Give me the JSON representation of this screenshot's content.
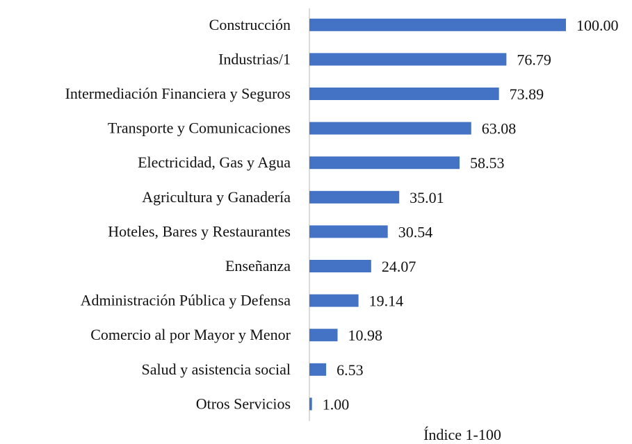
{
  "chart_data": {
    "type": "bar",
    "orientation": "horizontal",
    "x_label": "Índice 1-100",
    "categories": [
      "Construcción",
      "Industrias/1",
      "Intermediación Financiera y Seguros",
      "Transporte y Comunicaciones",
      "Electricidad, Gas y Agua",
      "Agricultura y Ganadería",
      "Hoteles, Bares y Restaurantes",
      "Enseñanza",
      "Administración Pública y Defensa",
      "Comercio al por Mayor y Menor",
      "Salud y asistencia social",
      "Otros Servicios"
    ],
    "values": [
      100,
      76.79,
      73.89,
      63.08,
      58.53,
      35.01,
      30.54,
      24.07,
      19.14,
      10.98,
      6.53,
      1
    ],
    "value_labels": [
      "100.00",
      "76.79",
      "73.89",
      "63.08",
      "58.53",
      "35.01",
      "30.54",
      "24.07",
      "19.14",
      "10.98",
      "6.53",
      "1.00"
    ],
    "color": "#4472c4",
    "xlim": [
      0,
      100
    ]
  }
}
